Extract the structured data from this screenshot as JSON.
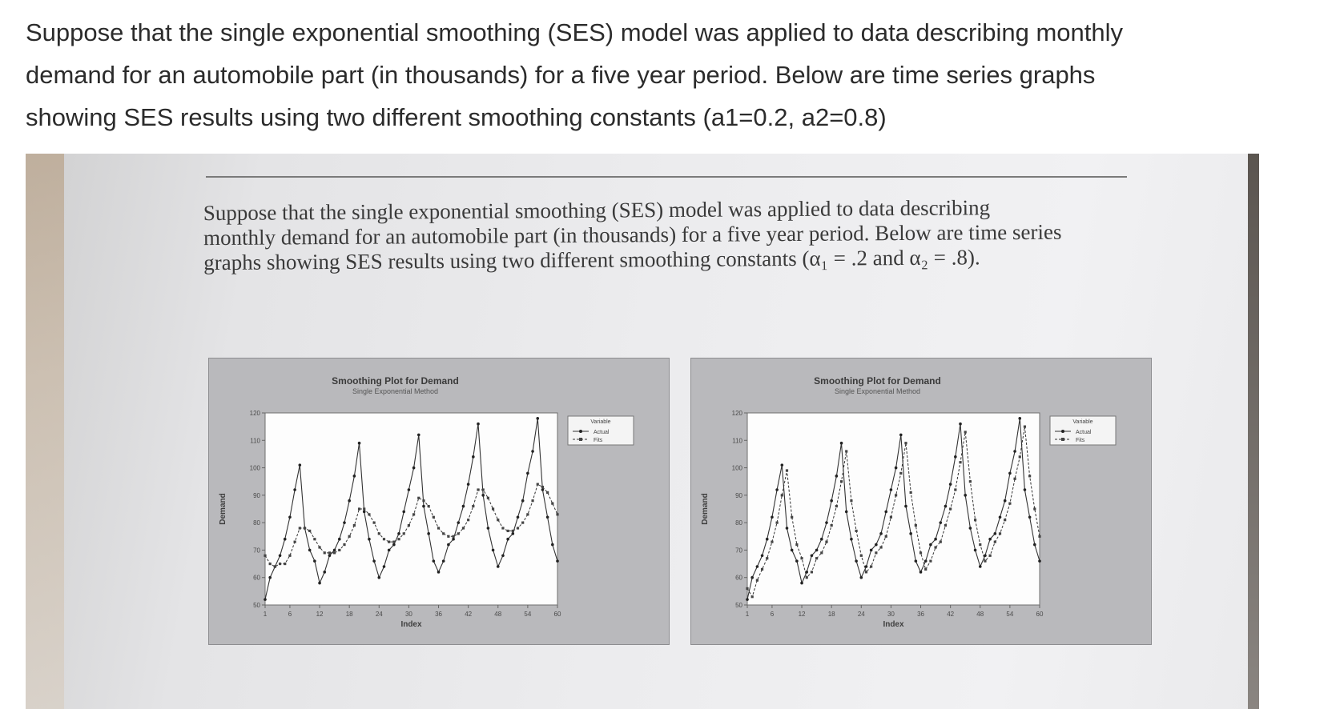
{
  "question": {
    "line1": "Suppose that the single exponential smoothing (SES) model was applied to data describing monthly",
    "line2": "demand for an automobile part (in thousands) for a five year period. Below are time series graphs",
    "line3": "showing SES results using two different smoothing constants (a1=0.2, a2=0.8)"
  },
  "photo": {
    "line1": "Suppose that the single exponential smoothing (SES) model was applied to data describing",
    "line2": "monthly demand for an automobile part (in thousands) for a five year period. Below are time series",
    "line3": "graphs showing SES results using two different smoothing constants (α₁ = .2 and α₂ = .8)."
  },
  "colors": {
    "question_text": "#2b2b2b",
    "panel": "#b9b9bc",
    "plot_bg": "#ffffff",
    "series": "#333333"
  },
  "chart_data": [
    {
      "type": "line",
      "title": "Smoothing Plot for Demand",
      "subtitle": "Single Exponential Method",
      "xlabel": "Index",
      "ylabel": "Demand",
      "xlim": [
        1,
        60
      ],
      "ylim": [
        50,
        120
      ],
      "xticks": [
        1,
        6,
        12,
        18,
        24,
        30,
        36,
        42,
        48,
        54,
        60
      ],
      "yticks": [
        50,
        60,
        70,
        80,
        90,
        100,
        110,
        120
      ],
      "legend": {
        "title": "Variable",
        "entries": [
          "Actual",
          "Fits"
        ],
        "placement": "right"
      },
      "series": [
        {
          "name": "Actual",
          "values": [
            52,
            60,
            64,
            68,
            74,
            82,
            92,
            101,
            78,
            70,
            66,
            58,
            62,
            68,
            70,
            74,
            80,
            88,
            97,
            109,
            84,
            74,
            66,
            60,
            64,
            70,
            72,
            76,
            84,
            92,
            100,
            112,
            86,
            76,
            66,
            62,
            66,
            72,
            74,
            80,
            86,
            94,
            104,
            116,
            90,
            78,
            70,
            64,
            68,
            74,
            76,
            82,
            88,
            98,
            106,
            118,
            92,
            82,
            72,
            66
          ]
        },
        {
          "name": "Fits",
          "values": [
            68,
            65,
            64,
            65,
            65,
            68,
            73,
            78,
            78,
            77,
            74,
            71,
            69,
            69,
            69,
            70,
            72,
            75,
            79,
            85,
            85,
            83,
            80,
            76,
            74,
            73,
            73,
            74,
            76,
            79,
            83,
            89,
            88,
            86,
            82,
            78,
            76,
            75,
            75,
            76,
            78,
            81,
            86,
            92,
            92,
            89,
            85,
            81,
            78,
            77,
            77,
            78,
            80,
            83,
            88,
            94,
            93,
            91,
            87,
            83
          ]
        }
      ]
    },
    {
      "type": "line",
      "title": "Smoothing Plot for Demand",
      "subtitle": "Single Exponential Method",
      "xlabel": "Index",
      "ylabel": "Demand",
      "xlim": [
        1,
        60
      ],
      "ylim": [
        50,
        120
      ],
      "xticks": [
        1,
        6,
        12,
        18,
        24,
        30,
        36,
        42,
        48,
        54,
        60
      ],
      "yticks": [
        50,
        60,
        70,
        80,
        90,
        100,
        110,
        120
      ],
      "legend": {
        "title": "Variable",
        "entries": [
          "Actual",
          "Fits"
        ],
        "placement": "right"
      },
      "series": [
        {
          "name": "Actual",
          "values": [
            52,
            60,
            64,
            68,
            74,
            82,
            92,
            101,
            78,
            70,
            66,
            58,
            62,
            68,
            70,
            74,
            80,
            88,
            97,
            109,
            84,
            74,
            66,
            60,
            64,
            70,
            72,
            76,
            84,
            92,
            100,
            112,
            86,
            76,
            66,
            62,
            66,
            72,
            74,
            80,
            86,
            94,
            104,
            116,
            90,
            78,
            70,
            64,
            68,
            74,
            76,
            82,
            88,
            98,
            106,
            118,
            92,
            82,
            72,
            66
          ]
        },
        {
          "name": "Fits",
          "values": [
            56,
            53,
            59,
            63,
            67,
            73,
            80,
            90,
            99,
            82,
            72,
            67,
            60,
            62,
            67,
            69,
            73,
            79,
            86,
            95,
            106,
            88,
            77,
            68,
            62,
            64,
            69,
            71,
            75,
            82,
            90,
            98,
            109,
            91,
            79,
            69,
            63,
            66,
            71,
            73,
            79,
            85,
            92,
            102,
            113,
            95,
            81,
            72,
            66,
            68,
            73,
            76,
            81,
            87,
            96,
            104,
            115,
            97,
            85,
            75
          ]
        }
      ]
    }
  ]
}
